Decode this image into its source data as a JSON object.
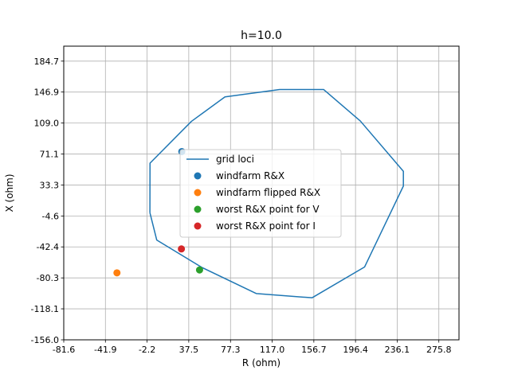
{
  "chart_data": {
    "type": "scatter",
    "title": "h=10.0",
    "xlabel": "R (ohm)",
    "ylabel": "X (ohm)",
    "xlim": [
      -81.6,
      295.0
    ],
    "ylim": [
      -156.0,
      203.0
    ],
    "xticks": [
      "-81.6",
      "-41.9",
      "-2.2",
      "37.5",
      "77.3",
      "117.0",
      "156.7",
      "196.4",
      "236.1",
      "275.8"
    ],
    "yticks": [
      "-156.0",
      "-118.1",
      "-80.3",
      "-42.4",
      "-4.6",
      "33.3",
      "71.1",
      "109.0",
      "146.9",
      "184.7"
    ],
    "grid": true,
    "legend_position": "center",
    "series": [
      {
        "name": "grid loci",
        "kind": "line",
        "color": "#1f77b4",
        "x": [
          0.5,
          0.6,
          40.0,
          72.0,
          124.0,
          166.0,
          201.0,
          242.0,
          242.0,
          205.0,
          155.0,
          102.0,
          50.0,
          7.0,
          0.5
        ],
        "y": [
          -0.6,
          60.0,
          111.0,
          141.0,
          150.0,
          150.0,
          111.5,
          50.0,
          32.0,
          -67.0,
          -104.6,
          -99.5,
          -67.5,
          -34.0,
          -0.6
        ]
      },
      {
        "name": "windfarm R&X",
        "kind": "scatter",
        "color": "#1f77b4",
        "x": [
          30.9
        ],
        "y": [
          74.1
        ]
      },
      {
        "name": "windfarm flipped R&X",
        "kind": "scatter",
        "color": "#ff7f0e",
        "x": [
          -30.9
        ],
        "y": [
          -74.1
        ]
      },
      {
        "name": "worst R&X point for V",
        "kind": "scatter",
        "color": "#2ca02c",
        "x": [
          47.8
        ],
        "y": [
          -70.6
        ]
      },
      {
        "name": "worst R&X point for I",
        "kind": "scatter",
        "color": "#d62728",
        "x": [
          30.5
        ],
        "y": [
          -44.9
        ]
      }
    ]
  }
}
